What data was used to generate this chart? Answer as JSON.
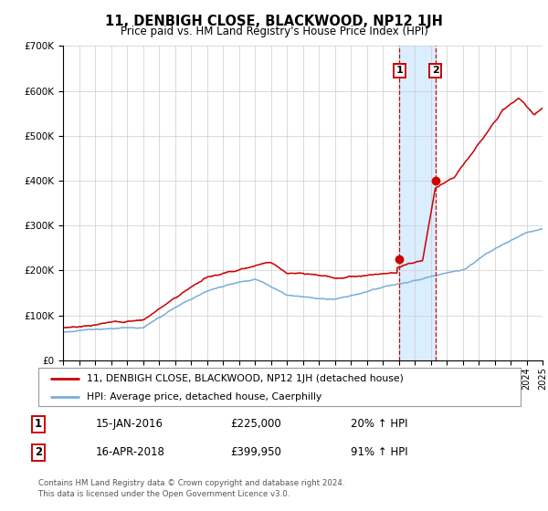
{
  "title": "11, DENBIGH CLOSE, BLACKWOOD, NP12 1JH",
  "subtitle": "Price paid vs. HM Land Registry's House Price Index (HPI)",
  "legend_line1": "11, DENBIGH CLOSE, BLACKWOOD, NP12 1JH (detached house)",
  "legend_line2": "HPI: Average price, detached house, Caerphilly",
  "sale1_date": "15-JAN-2016",
  "sale1_price": "£225,000",
  "sale1_hpi": "20% ↑ HPI",
  "sale1_year": 2016.04,
  "sale1_value": 225000,
  "sale2_date": "16-APR-2018",
  "sale2_price": "£399,950",
  "sale2_hpi": "91% ↑ HPI",
  "sale2_year": 2018.29,
  "sale2_value": 399950,
  "red_color": "#cc0000",
  "blue_color": "#7aaddc",
  "highlight_color": "#daeeff",
  "footer": "Contains HM Land Registry data © Crown copyright and database right 2024.\nThis data is licensed under the Open Government Licence v3.0.",
  "ylim_max": 700000,
  "xmin": 1995,
  "xmax": 2025
}
